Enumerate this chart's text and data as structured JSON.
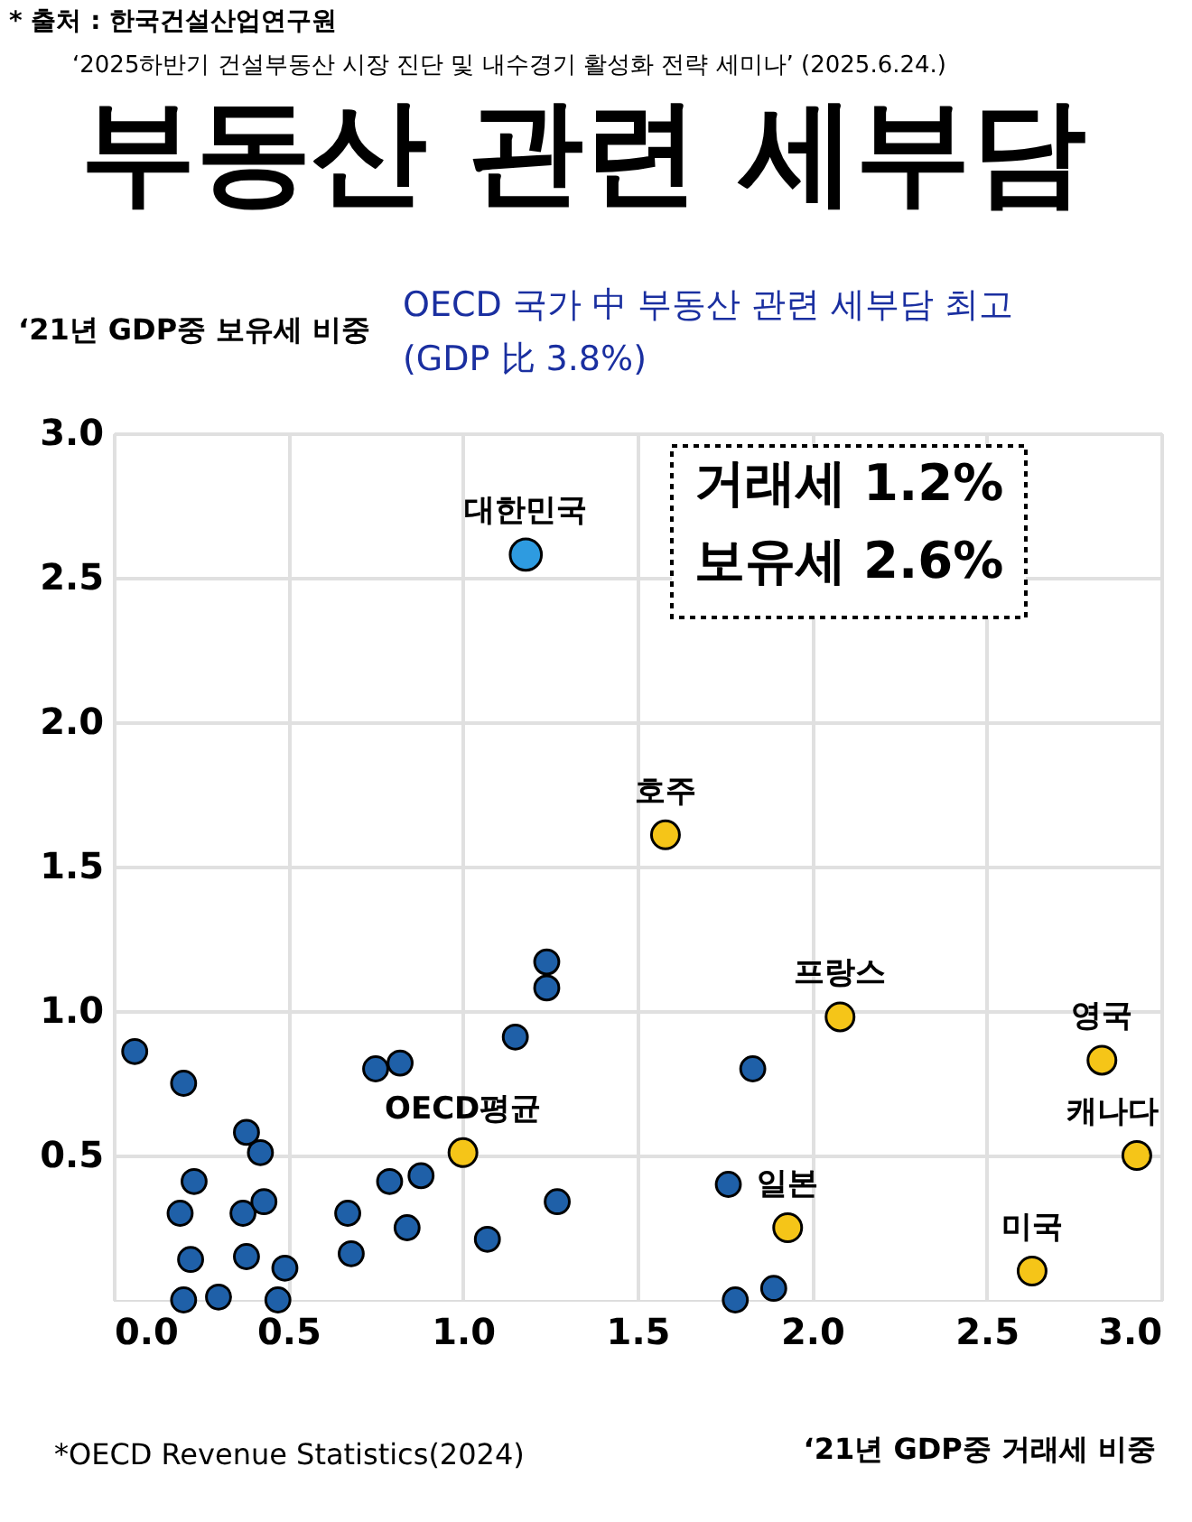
{
  "chart_data": {
    "type": "scatter",
    "title": "부동산 관련 세부담",
    "subtitle": "OECD 국가 中 부동산 관련 세부담 최고\n(GDP 比 3.8%)",
    "xlabel": "‘21년 GDP중 거래세 비중",
    "ylabel": "‘21년 GDP중 보유세 비중",
    "xlim": [
      0,
      3
    ],
    "ylim": [
      0,
      3
    ],
    "xticks": [
      {
        "value": 0,
        "label": "0.0"
      },
      0.5,
      {
        "value": 1,
        "label": "1.0"
      },
      1.5,
      {
        "value": 2,
        "label": "2.0"
      },
      2.5,
      {
        "value": 3,
        "label": "3.0"
      }
    ],
    "yticks": [
      0.5,
      {
        "value": 1,
        "label": "1.0"
      },
      1.5,
      {
        "value": 2,
        "label": "2.0"
      },
      2.5,
      {
        "value": 3,
        "label": "3.0"
      }
    ],
    "grid": true,
    "marker": "circle",
    "series": [
      {
        "color": "#1f60a8",
        "x": [
          0.06,
          0.2,
          0.38,
          0.42,
          0.23,
          0.19,
          0.37,
          0.43,
          0.22,
          0.38,
          0.49,
          0.2,
          0.3,
          0.47,
          0.67,
          0.68,
          0.75,
          0.82,
          0.79,
          0.88,
          0.84,
          1.07,
          1.15,
          1.24,
          1.24,
          1.27,
          1.83,
          1.76,
          1.78,
          1.89
        ],
        "values": [
          0.86,
          0.75,
          0.58,
          0.51,
          0.41,
          0.3,
          0.3,
          0.34,
          0.14,
          0.15,
          0.11,
          0.0,
          0.01,
          0.0,
          0.3,
          0.16,
          0.8,
          0.82,
          0.41,
          0.43,
          0.25,
          0.21,
          0.91,
          1.17,
          1.08,
          0.34,
          0.8,
          0.4,
          0.0,
          0.04
        ]
      },
      {
        "color": "#f5c518",
        "x": [
          1.0,
          1.58,
          2.08,
          2.83,
          2.93,
          1.93,
          2.63
        ],
        "values": [
          0.51,
          1.61,
          0.98,
          0.83,
          0.5,
          0.25,
          0.1
        ]
      },
      {
        "color": "#2e9be0",
        "x": [
          1.18
        ],
        "values": [
          2.58
        ]
      }
    ],
    "annotations": [
      "* 출처 : 한국건설산업연구원",
      "‘2025하반기 건설부동산 시장 진단 및 내수경기 활성화 전략 세미나’ (2025.6.24.)",
      "거래세 1.2%",
      "보유세 2.6%",
      "*OECD Revenue Statistics(2024)",
      {
        "text": "OECD평균",
        "x": 1.0,
        "y": 0.51
      },
      {
        "text": "호주",
        "x": 1.58,
        "y": 1.61
      },
      {
        "text": "프랑스",
        "x": 2.08,
        "y": 0.98
      },
      {
        "text": "영국",
        "x": 2.83,
        "y": 0.83
      },
      {
        "text": "캐나다",
        "x": 2.93,
        "y": 0.5
      },
      {
        "text": "일본",
        "x": 1.93,
        "y": 0.25
      },
      {
        "text": "미국",
        "x": 2.63,
        "y": 0.1
      },
      {
        "text": "대한민국",
        "x": 1.18,
        "y": 2.58
      }
    ]
  }
}
